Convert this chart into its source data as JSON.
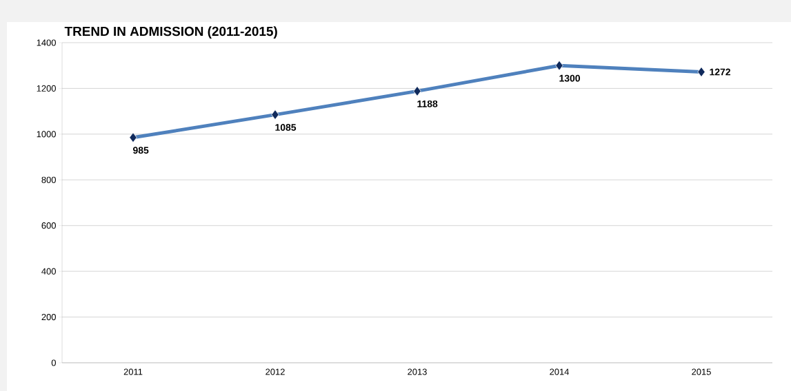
{
  "chart_data": {
    "type": "line",
    "title": "TREND IN ADMISSION (2011-2015)",
    "categories": [
      "2011",
      "2012",
      "2013",
      "2014",
      "2015"
    ],
    "series": [
      {
        "color": "#4f81bd",
        "values": [
          985,
          1085,
          1188,
          1300,
          1272
        ]
      }
    ],
    "ylim": [
      0,
      1400
    ],
    "yticks": [
      0,
      200,
      400,
      600,
      800,
      1000,
      1200,
      1400
    ],
    "grid": "y",
    "marker": "diamond",
    "line_style": "solid",
    "data_labels": true
  }
}
